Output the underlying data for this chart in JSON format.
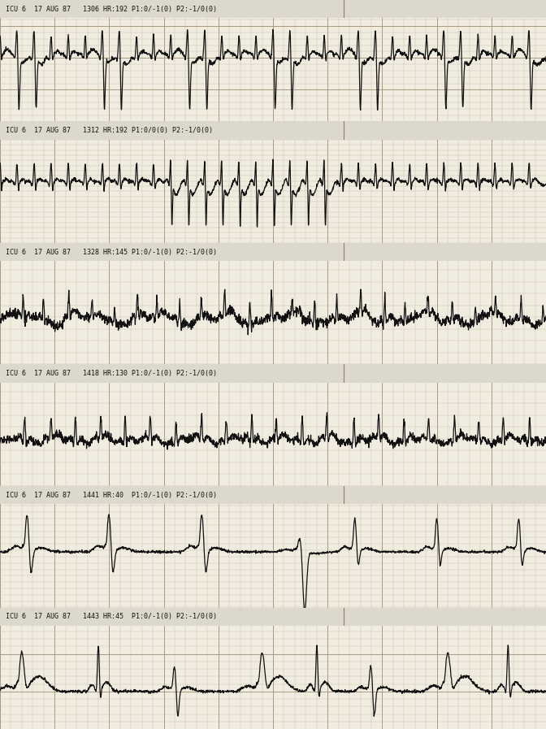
{
  "bg_color": "#f0ece0",
  "grid_minor_color": "#c8c0a8",
  "grid_major_color": "#a89880",
  "separator_color": "#888070",
  "line_color": "#111111",
  "text_color": "#111111",
  "label_bg_color": "#ddd8cc",
  "strip_labels": [
    "ICU 6  17 AUG 87   1306 HR:192 P1:0/-1(0) P2:-1/0(0)",
    "ICU 6  17 AUG 87   1312 HR:192 P1:0/0(0) P2:-1/0(0)",
    "ICU 6  17 AUG 87   1328 HR:145 P1:0/-1(0) P2:-1/0(0)",
    "ICU 6  17 AUG 87   1418 HR:130 P1:0/-1(0) P2:-1/0(0)",
    "ICU 6  17 AUG 87   1441 HR:40  P1:0/-1(0) P2:-1/0(0)",
    "ICU 6  17 AUG 87   1443 HR:45  P1:0/-1(0) P2:-1/0(0)"
  ],
  "fig_width": 6.72,
  "fig_height": 8.97,
  "dpi": 100
}
